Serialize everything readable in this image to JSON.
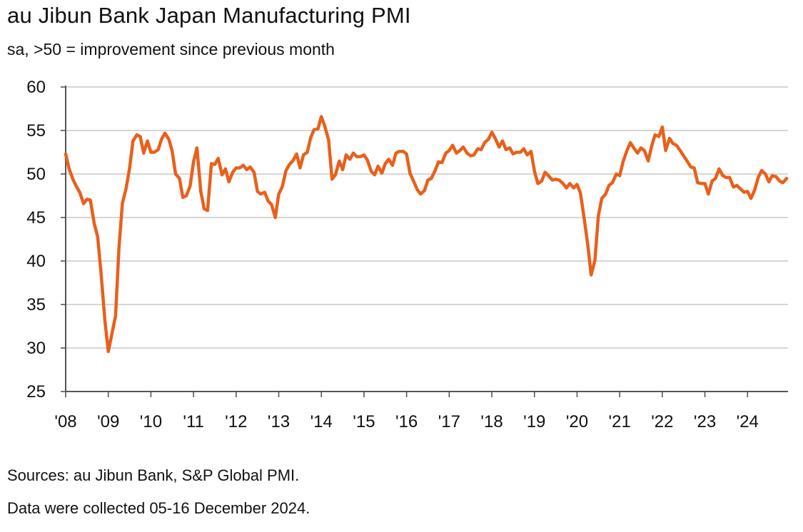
{
  "title": "au Jibun Bank Japan Manufacturing PMI",
  "subtitle": "sa, >50 = improvement since previous month",
  "sources": "Sources: au Jibun Bank, S&P Global PMI.",
  "note": "Data were collected 05-16 December 2024.",
  "colors": {
    "line": "#E8601C",
    "grid": "#c8c8c8",
    "axis": "#555555"
  },
  "chart_data": {
    "type": "line",
    "title": "au Jibun Bank Japan Manufacturing PMI",
    "subtitle": "sa, >50 = improvement since previous month",
    "ylim": [
      25,
      60
    ],
    "yticks": [
      25,
      30,
      35,
      40,
      45,
      50,
      55,
      60
    ],
    "xlim": [
      2008.0,
      2024.95
    ],
    "xticks": [
      "'08",
      "'09",
      "'10",
      "'11",
      "'12",
      "'13",
      "'14",
      "'15",
      "'16",
      "'17",
      "'18",
      "'19",
      "'20",
      "'21",
      "'22",
      "'23",
      "'24"
    ],
    "grid": true,
    "series": [
      {
        "values": [
          [
            2008.0,
            52.3
          ],
          [
            2008.08,
            50.6
          ],
          [
            2008.17,
            49.4
          ],
          [
            2008.25,
            48.6
          ],
          [
            2008.33,
            47.9
          ],
          [
            2008.42,
            46.6
          ],
          [
            2008.5,
            47.1
          ],
          [
            2008.58,
            47.0
          ],
          [
            2008.67,
            44.3
          ],
          [
            2008.75,
            42.8
          ],
          [
            2008.83,
            38.6
          ],
          [
            2008.92,
            33.2
          ],
          [
            2009.0,
            29.6
          ],
          [
            2009.08,
            31.5
          ],
          [
            2009.17,
            33.7
          ],
          [
            2009.25,
            41.4
          ],
          [
            2009.33,
            46.6
          ],
          [
            2009.42,
            48.4
          ],
          [
            2009.5,
            50.7
          ],
          [
            2009.58,
            53.8
          ],
          [
            2009.67,
            54.5
          ],
          [
            2009.75,
            54.3
          ],
          [
            2009.83,
            52.4
          ],
          [
            2009.92,
            53.8
          ],
          [
            2010.0,
            52.5
          ],
          [
            2010.08,
            52.5
          ],
          [
            2010.17,
            52.8
          ],
          [
            2010.25,
            54.0
          ],
          [
            2010.33,
            54.7
          ],
          [
            2010.42,
            54.0
          ],
          [
            2010.5,
            52.6
          ],
          [
            2010.58,
            50.0
          ],
          [
            2010.67,
            49.5
          ],
          [
            2010.75,
            47.3
          ],
          [
            2010.83,
            47.5
          ],
          [
            2010.92,
            48.6
          ],
          [
            2011.0,
            51.4
          ],
          [
            2011.08,
            53.0
          ],
          [
            2011.17,
            48.0
          ],
          [
            2011.25,
            46.0
          ],
          [
            2011.33,
            45.8
          ],
          [
            2011.42,
            51.2
          ],
          [
            2011.5,
            51.1
          ],
          [
            2011.58,
            51.8
          ],
          [
            2011.67,
            49.9
          ],
          [
            2011.75,
            50.6
          ],
          [
            2011.83,
            49.1
          ],
          [
            2011.92,
            50.2
          ],
          [
            2012.0,
            50.7
          ],
          [
            2012.08,
            50.7
          ],
          [
            2012.17,
            51.0
          ],
          [
            2012.25,
            50.5
          ],
          [
            2012.33,
            50.8
          ],
          [
            2012.42,
            50.2
          ],
          [
            2012.5,
            48.0
          ],
          [
            2012.58,
            47.7
          ],
          [
            2012.67,
            47.9
          ],
          [
            2012.75,
            46.9
          ],
          [
            2012.83,
            46.5
          ],
          [
            2012.92,
            45.0
          ],
          [
            2013.0,
            47.7
          ],
          [
            2013.08,
            48.5
          ],
          [
            2013.17,
            50.4
          ],
          [
            2013.25,
            51.1
          ],
          [
            2013.33,
            51.5
          ],
          [
            2013.42,
            52.3
          ],
          [
            2013.5,
            50.7
          ],
          [
            2013.58,
            52.2
          ],
          [
            2013.67,
            52.5
          ],
          [
            2013.75,
            54.2
          ],
          [
            2013.83,
            55.1
          ],
          [
            2013.92,
            55.2
          ],
          [
            2014.0,
            56.6
          ],
          [
            2014.08,
            55.5
          ],
          [
            2014.17,
            53.9
          ],
          [
            2014.25,
            49.4
          ],
          [
            2014.33,
            49.9
          ],
          [
            2014.42,
            51.5
          ],
          [
            2014.5,
            50.5
          ],
          [
            2014.58,
            52.2
          ],
          [
            2014.67,
            51.7
          ],
          [
            2014.75,
            52.4
          ],
          [
            2014.83,
            52.0
          ],
          [
            2014.92,
            52.0
          ],
          [
            2015.0,
            52.2
          ],
          [
            2015.08,
            51.6
          ],
          [
            2015.17,
            50.3
          ],
          [
            2015.25,
            49.9
          ],
          [
            2015.33,
            50.9
          ],
          [
            2015.42,
            50.1
          ],
          [
            2015.5,
            51.2
          ],
          [
            2015.58,
            51.7
          ],
          [
            2015.67,
            51.0
          ],
          [
            2015.75,
            52.4
          ],
          [
            2015.83,
            52.6
          ],
          [
            2015.92,
            52.6
          ],
          [
            2016.0,
            52.3
          ],
          [
            2016.08,
            50.1
          ],
          [
            2016.17,
            49.1
          ],
          [
            2016.25,
            48.2
          ],
          [
            2016.33,
            47.7
          ],
          [
            2016.42,
            48.1
          ],
          [
            2016.5,
            49.3
          ],
          [
            2016.58,
            49.5
          ],
          [
            2016.67,
            50.4
          ],
          [
            2016.75,
            51.4
          ],
          [
            2016.83,
            51.3
          ],
          [
            2016.92,
            52.4
          ],
          [
            2017.0,
            52.7
          ],
          [
            2017.08,
            53.3
          ],
          [
            2017.17,
            52.4
          ],
          [
            2017.25,
            52.7
          ],
          [
            2017.33,
            53.1
          ],
          [
            2017.42,
            52.4
          ],
          [
            2017.5,
            52.1
          ],
          [
            2017.58,
            52.2
          ],
          [
            2017.67,
            52.9
          ],
          [
            2017.75,
            52.8
          ],
          [
            2017.83,
            53.6
          ],
          [
            2017.92,
            54.0
          ],
          [
            2018.0,
            54.8
          ],
          [
            2018.08,
            54.1
          ],
          [
            2018.17,
            53.1
          ],
          [
            2018.25,
            53.8
          ],
          [
            2018.33,
            52.8
          ],
          [
            2018.42,
            53.0
          ],
          [
            2018.5,
            52.3
          ],
          [
            2018.58,
            52.5
          ],
          [
            2018.67,
            52.5
          ],
          [
            2018.75,
            52.9
          ],
          [
            2018.83,
            52.2
          ],
          [
            2018.92,
            52.6
          ],
          [
            2019.0,
            50.3
          ],
          [
            2019.08,
            48.9
          ],
          [
            2019.17,
            49.2
          ],
          [
            2019.25,
            50.2
          ],
          [
            2019.33,
            49.8
          ],
          [
            2019.42,
            49.3
          ],
          [
            2019.5,
            49.4
          ],
          [
            2019.58,
            49.3
          ],
          [
            2019.67,
            48.9
          ],
          [
            2019.75,
            48.4
          ],
          [
            2019.83,
            48.9
          ],
          [
            2019.92,
            48.4
          ],
          [
            2020.0,
            48.8
          ],
          [
            2020.08,
            47.8
          ],
          [
            2020.17,
            44.8
          ],
          [
            2020.25,
            41.9
          ],
          [
            2020.33,
            38.4
          ],
          [
            2020.42,
            40.1
          ],
          [
            2020.5,
            45.2
          ],
          [
            2020.58,
            47.2
          ],
          [
            2020.67,
            47.7
          ],
          [
            2020.75,
            48.7
          ],
          [
            2020.83,
            49.0
          ],
          [
            2020.92,
            50.0
          ],
          [
            2021.0,
            49.8
          ],
          [
            2021.08,
            51.4
          ],
          [
            2021.17,
            52.7
          ],
          [
            2021.25,
            53.6
          ],
          [
            2021.33,
            53.0
          ],
          [
            2021.42,
            52.4
          ],
          [
            2021.5,
            53.0
          ],
          [
            2021.58,
            52.7
          ],
          [
            2021.67,
            51.5
          ],
          [
            2021.75,
            53.2
          ],
          [
            2021.83,
            54.5
          ],
          [
            2021.92,
            54.3
          ],
          [
            2022.0,
            55.4
          ],
          [
            2022.08,
            52.7
          ],
          [
            2022.17,
            54.1
          ],
          [
            2022.25,
            53.5
          ],
          [
            2022.33,
            53.3
          ],
          [
            2022.42,
            52.7
          ],
          [
            2022.5,
            52.1
          ],
          [
            2022.58,
            51.5
          ],
          [
            2022.67,
            50.8
          ],
          [
            2022.75,
            50.7
          ],
          [
            2022.83,
            49.0
          ],
          [
            2022.92,
            48.9
          ],
          [
            2023.0,
            48.9
          ],
          [
            2023.08,
            47.7
          ],
          [
            2023.17,
            49.2
          ],
          [
            2023.25,
            49.5
          ],
          [
            2023.33,
            50.6
          ],
          [
            2023.42,
            49.8
          ],
          [
            2023.5,
            49.6
          ],
          [
            2023.58,
            49.6
          ],
          [
            2023.67,
            48.5
          ],
          [
            2023.75,
            48.7
          ],
          [
            2023.83,
            48.3
          ],
          [
            2023.92,
            47.9
          ],
          [
            2024.0,
            48.0
          ],
          [
            2024.08,
            47.2
          ],
          [
            2024.17,
            48.2
          ],
          [
            2024.25,
            49.6
          ],
          [
            2024.33,
            50.4
          ],
          [
            2024.42,
            50.0
          ],
          [
            2024.5,
            49.1
          ],
          [
            2024.58,
            49.8
          ],
          [
            2024.67,
            49.7
          ],
          [
            2024.75,
            49.2
          ],
          [
            2024.83,
            49.0
          ],
          [
            2024.92,
            49.5
          ]
        ]
      }
    ]
  }
}
